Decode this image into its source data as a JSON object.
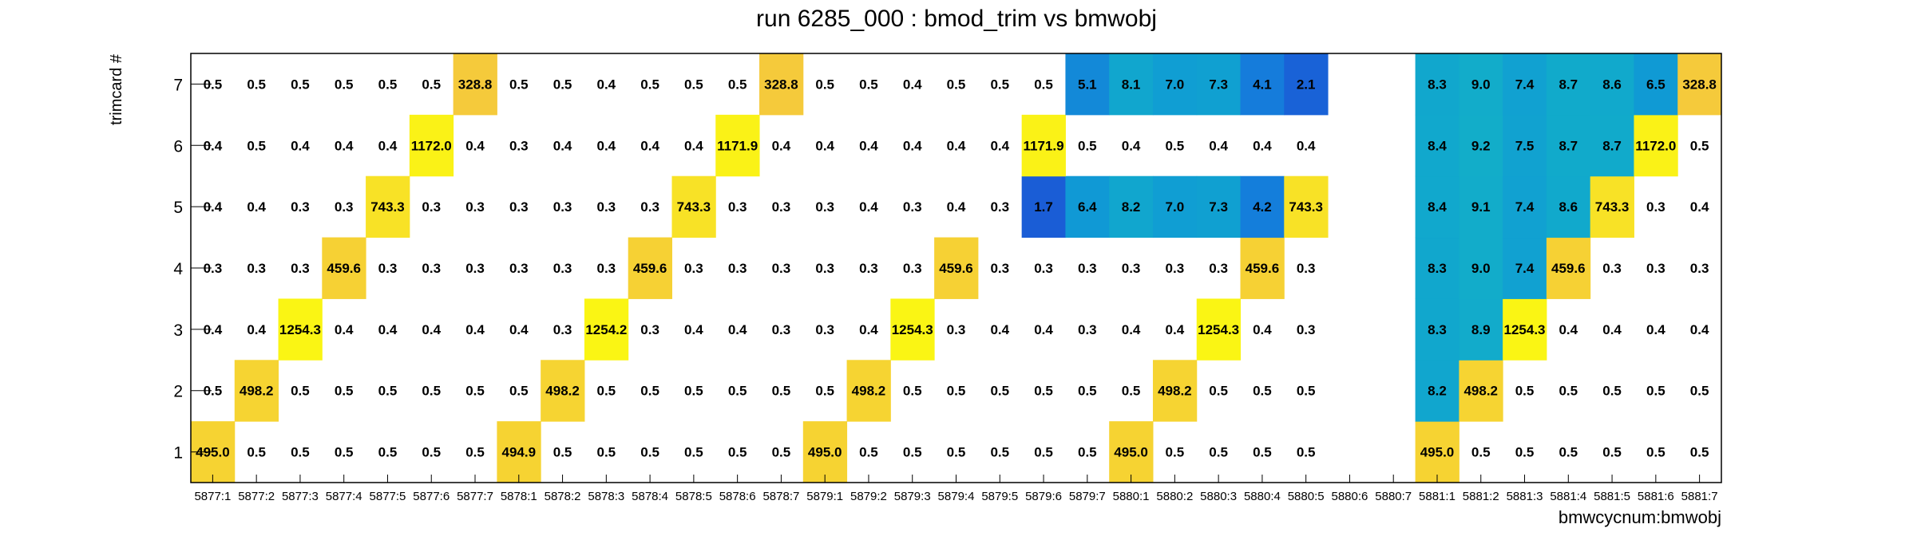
{
  "chart_data": {
    "type": "heatmap",
    "title": "run 6285_000 : bmod_trim vs bmwobj",
    "xlabel": "bmwcycnum:bmwobj",
    "ylabel": "trimcard #",
    "x_categories": [
      "5877:1",
      "5877:2",
      "5877:3",
      "5877:4",
      "5877:5",
      "5877:6",
      "5877:7",
      "5878:1",
      "5878:2",
      "5878:3",
      "5878:4",
      "5878:5",
      "5878:6",
      "5878:7",
      "5879:1",
      "5879:2",
      "5879:3",
      "5879:4",
      "5879:5",
      "5879:6",
      "5879:7",
      "5880:1",
      "5880:2",
      "5880:3",
      "5880:4",
      "5880:5",
      "5880:6",
      "5880:7",
      "5881:1",
      "5881:2",
      "5881:3",
      "5881:4",
      "5881:5",
      "5881:6",
      "5881:7"
    ],
    "y_categories": [
      "1",
      "2",
      "3",
      "4",
      "5",
      "6",
      "7"
    ],
    "values": [
      [
        "495.0",
        "0.5",
        "0.5",
        "0.5",
        "0.5",
        "0.5",
        "0.5",
        "494.9",
        "0.5",
        "0.5",
        "0.5",
        "0.5",
        "0.5",
        "0.5",
        "495.0",
        "0.5",
        "0.5",
        "0.5",
        "0.5",
        "0.5",
        "0.5",
        "495.0",
        "0.5",
        "0.5",
        "0.5",
        "0.5",
        null,
        null,
        "495.0",
        "0.5",
        "0.5",
        "0.5",
        "0.5",
        "0.5",
        "0.5"
      ],
      [
        "0.5",
        "498.2",
        "0.5",
        "0.5",
        "0.5",
        "0.5",
        "0.5",
        "0.5",
        "498.2",
        "0.5",
        "0.5",
        "0.5",
        "0.5",
        "0.5",
        "0.5",
        "498.2",
        "0.5",
        "0.5",
        "0.5",
        "0.5",
        "0.5",
        "0.5",
        "498.2",
        "0.5",
        "0.5",
        "0.5",
        null,
        null,
        "8.2",
        "498.2",
        "0.5",
        "0.5",
        "0.5",
        "0.5",
        "0.5"
      ],
      [
        "0.4",
        "0.4",
        "1254.3",
        "0.4",
        "0.4",
        "0.4",
        "0.4",
        "0.4",
        "0.3",
        "1254.2",
        "0.3",
        "0.4",
        "0.4",
        "0.3",
        "0.3",
        "0.4",
        "1254.3",
        "0.3",
        "0.4",
        "0.4",
        "0.3",
        "0.4",
        "0.4",
        "1254.3",
        "0.4",
        "0.3",
        null,
        null,
        "8.3",
        "8.9",
        "1254.3",
        "0.4",
        "0.4",
        "0.4",
        "0.4"
      ],
      [
        "0.3",
        "0.3",
        "0.3",
        "459.6",
        "0.3",
        "0.3",
        "0.3",
        "0.3",
        "0.3",
        "0.3",
        "459.6",
        "0.3",
        "0.3",
        "0.3",
        "0.3",
        "0.3",
        "0.3",
        "459.6",
        "0.3",
        "0.3",
        "0.3",
        "0.3",
        "0.3",
        "0.3",
        "459.6",
        "0.3",
        null,
        null,
        "8.3",
        "9.0",
        "7.4",
        "459.6",
        "0.3",
        "0.3",
        "0.3"
      ],
      [
        "0.4",
        "0.4",
        "0.3",
        "0.3",
        "743.3",
        "0.3",
        "0.3",
        "0.3",
        "0.3",
        "0.3",
        "0.3",
        "743.3",
        "0.3",
        "0.3",
        "0.3",
        "0.4",
        "0.3",
        "0.4",
        "0.3",
        "1.7",
        "6.4",
        "8.2",
        "7.0",
        "7.3",
        "4.2",
        "743.3",
        null,
        null,
        "8.4",
        "9.1",
        "7.4",
        "8.6",
        "743.3",
        "0.3",
        "0.4"
      ],
      [
        "0.4",
        "0.5",
        "0.4",
        "0.4",
        "0.4",
        "1172.0",
        "0.4",
        "0.3",
        "0.4",
        "0.4",
        "0.4",
        "0.4",
        "1171.9",
        "0.4",
        "0.4",
        "0.4",
        "0.4",
        "0.4",
        "0.4",
        "1171.9",
        "0.5",
        "0.4",
        "0.5",
        "0.4",
        "0.4",
        "0.4",
        null,
        null,
        "8.4",
        "9.2",
        "7.5",
        "8.7",
        "8.7",
        "1172.0",
        "0.5"
      ],
      [
        "0.5",
        "0.5",
        "0.5",
        "0.5",
        "0.5",
        "0.5",
        "328.8",
        "0.5",
        "0.5",
        "0.4",
        "0.5",
        "0.5",
        "0.5",
        "328.8",
        "0.5",
        "0.5",
        "0.4",
        "0.5",
        "0.5",
        "0.5",
        "5.1",
        "8.1",
        "7.0",
        "7.3",
        "4.1",
        "2.1",
        null,
        null,
        "8.3",
        "9.0",
        "7.4",
        "8.7",
        "8.6",
        "6.5",
        "328.8"
      ]
    ],
    "grid": false,
    "legend": "none"
  }
}
